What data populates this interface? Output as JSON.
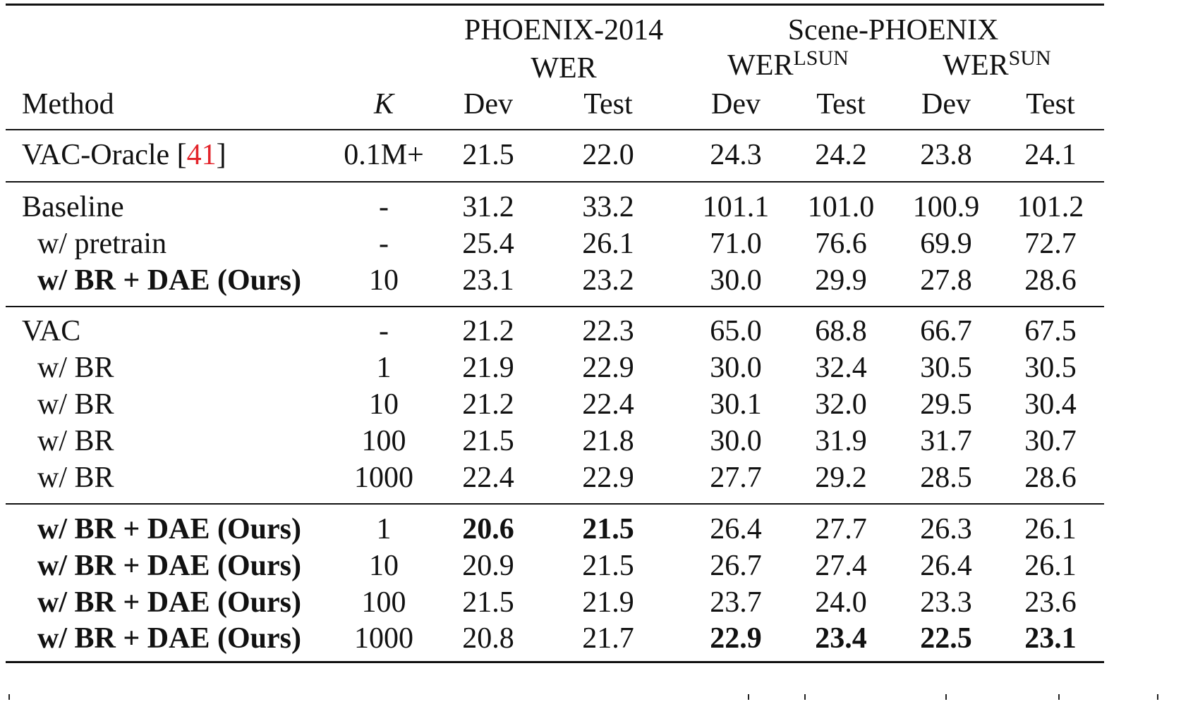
{
  "table": {
    "header": {
      "group_phoenix": "PHOENIX-2014",
      "group_scene": "Scene-PHOENIX",
      "phoenix_metric": "WER",
      "scene_metric_a_base": "WER",
      "scene_metric_a_sup": "LSUN",
      "scene_metric_b_base": "WER",
      "scene_metric_b_sup": "SUN",
      "col_method": "Method",
      "col_k": "K",
      "col_dev": "Dev",
      "col_test": "Test"
    },
    "rows": [
      {
        "method": "VAC-Oracle [",
        "cite": "41",
        "method_end": "]",
        "k": "0.1M+",
        "p_dev": "21.5",
        "p_test": "22.0",
        "l_dev": "24.3",
        "l_test": "24.2",
        "s_dev": "23.8",
        "s_test": "24.1"
      },
      {
        "method": "Baseline",
        "k": "-",
        "p_dev": "31.2",
        "p_test": "33.2",
        "l_dev": "101.1",
        "l_test": "101.0",
        "s_dev": "100.9",
        "s_test": "101.2"
      },
      {
        "method": "w/ pretrain",
        "k": "-",
        "p_dev": "25.4",
        "p_test": "26.1",
        "l_dev": "71.0",
        "l_test": "76.6",
        "s_dev": "69.9",
        "s_test": "72.7"
      },
      {
        "method": "w/ BR + DAE (Ours)",
        "k": "10",
        "p_dev": "23.1",
        "p_test": "23.2",
        "l_dev": "30.0",
        "l_test": "29.9",
        "s_dev": "27.8",
        "s_test": "28.6"
      },
      {
        "method": "VAC",
        "k": "-",
        "p_dev": "21.2",
        "p_test": "22.3",
        "l_dev": "65.0",
        "l_test": "68.8",
        "s_dev": "66.7",
        "s_test": "67.5"
      },
      {
        "method": "w/ BR",
        "k": "1",
        "p_dev": "21.9",
        "p_test": "22.9",
        "l_dev": "30.0",
        "l_test": "32.4",
        "s_dev": "30.5",
        "s_test": "30.5"
      },
      {
        "method": "w/ BR",
        "k": "10",
        "p_dev": "21.2",
        "p_test": "22.4",
        "l_dev": "30.1",
        "l_test": "32.0",
        "s_dev": "29.5",
        "s_test": "30.4"
      },
      {
        "method": "w/ BR",
        "k": "100",
        "p_dev": "21.5",
        "p_test": "21.8",
        "l_dev": "30.0",
        "l_test": "31.9",
        "s_dev": "31.7",
        "s_test": "30.7"
      },
      {
        "method": "w/ BR",
        "k": "1000",
        "p_dev": "22.4",
        "p_test": "22.9",
        "l_dev": "27.7",
        "l_test": "29.2",
        "s_dev": "28.5",
        "s_test": "28.6"
      },
      {
        "method": "w/ BR + DAE (Ours)",
        "k": "1",
        "p_dev": "20.6",
        "p_test": "21.5",
        "l_dev": "26.4",
        "l_test": "27.7",
        "s_dev": "26.3",
        "s_test": "26.1"
      },
      {
        "method": "w/ BR + DAE (Ours)",
        "k": "10",
        "p_dev": "20.9",
        "p_test": "21.5",
        "l_dev": "26.7",
        "l_test": "27.4",
        "s_dev": "26.4",
        "s_test": "26.1"
      },
      {
        "method": "w/ BR + DAE (Ours)",
        "k": "100",
        "p_dev": "21.5",
        "p_test": "21.9",
        "l_dev": "23.7",
        "l_test": "24.0",
        "s_dev": "23.3",
        "s_test": "23.6"
      },
      {
        "method": "w/ BR + DAE (Ours)",
        "k": "1000",
        "p_dev": "20.8",
        "p_test": "21.7",
        "l_dev": "22.9",
        "l_test": "23.4",
        "s_dev": "22.5",
        "s_test": "23.1"
      }
    ]
  }
}
